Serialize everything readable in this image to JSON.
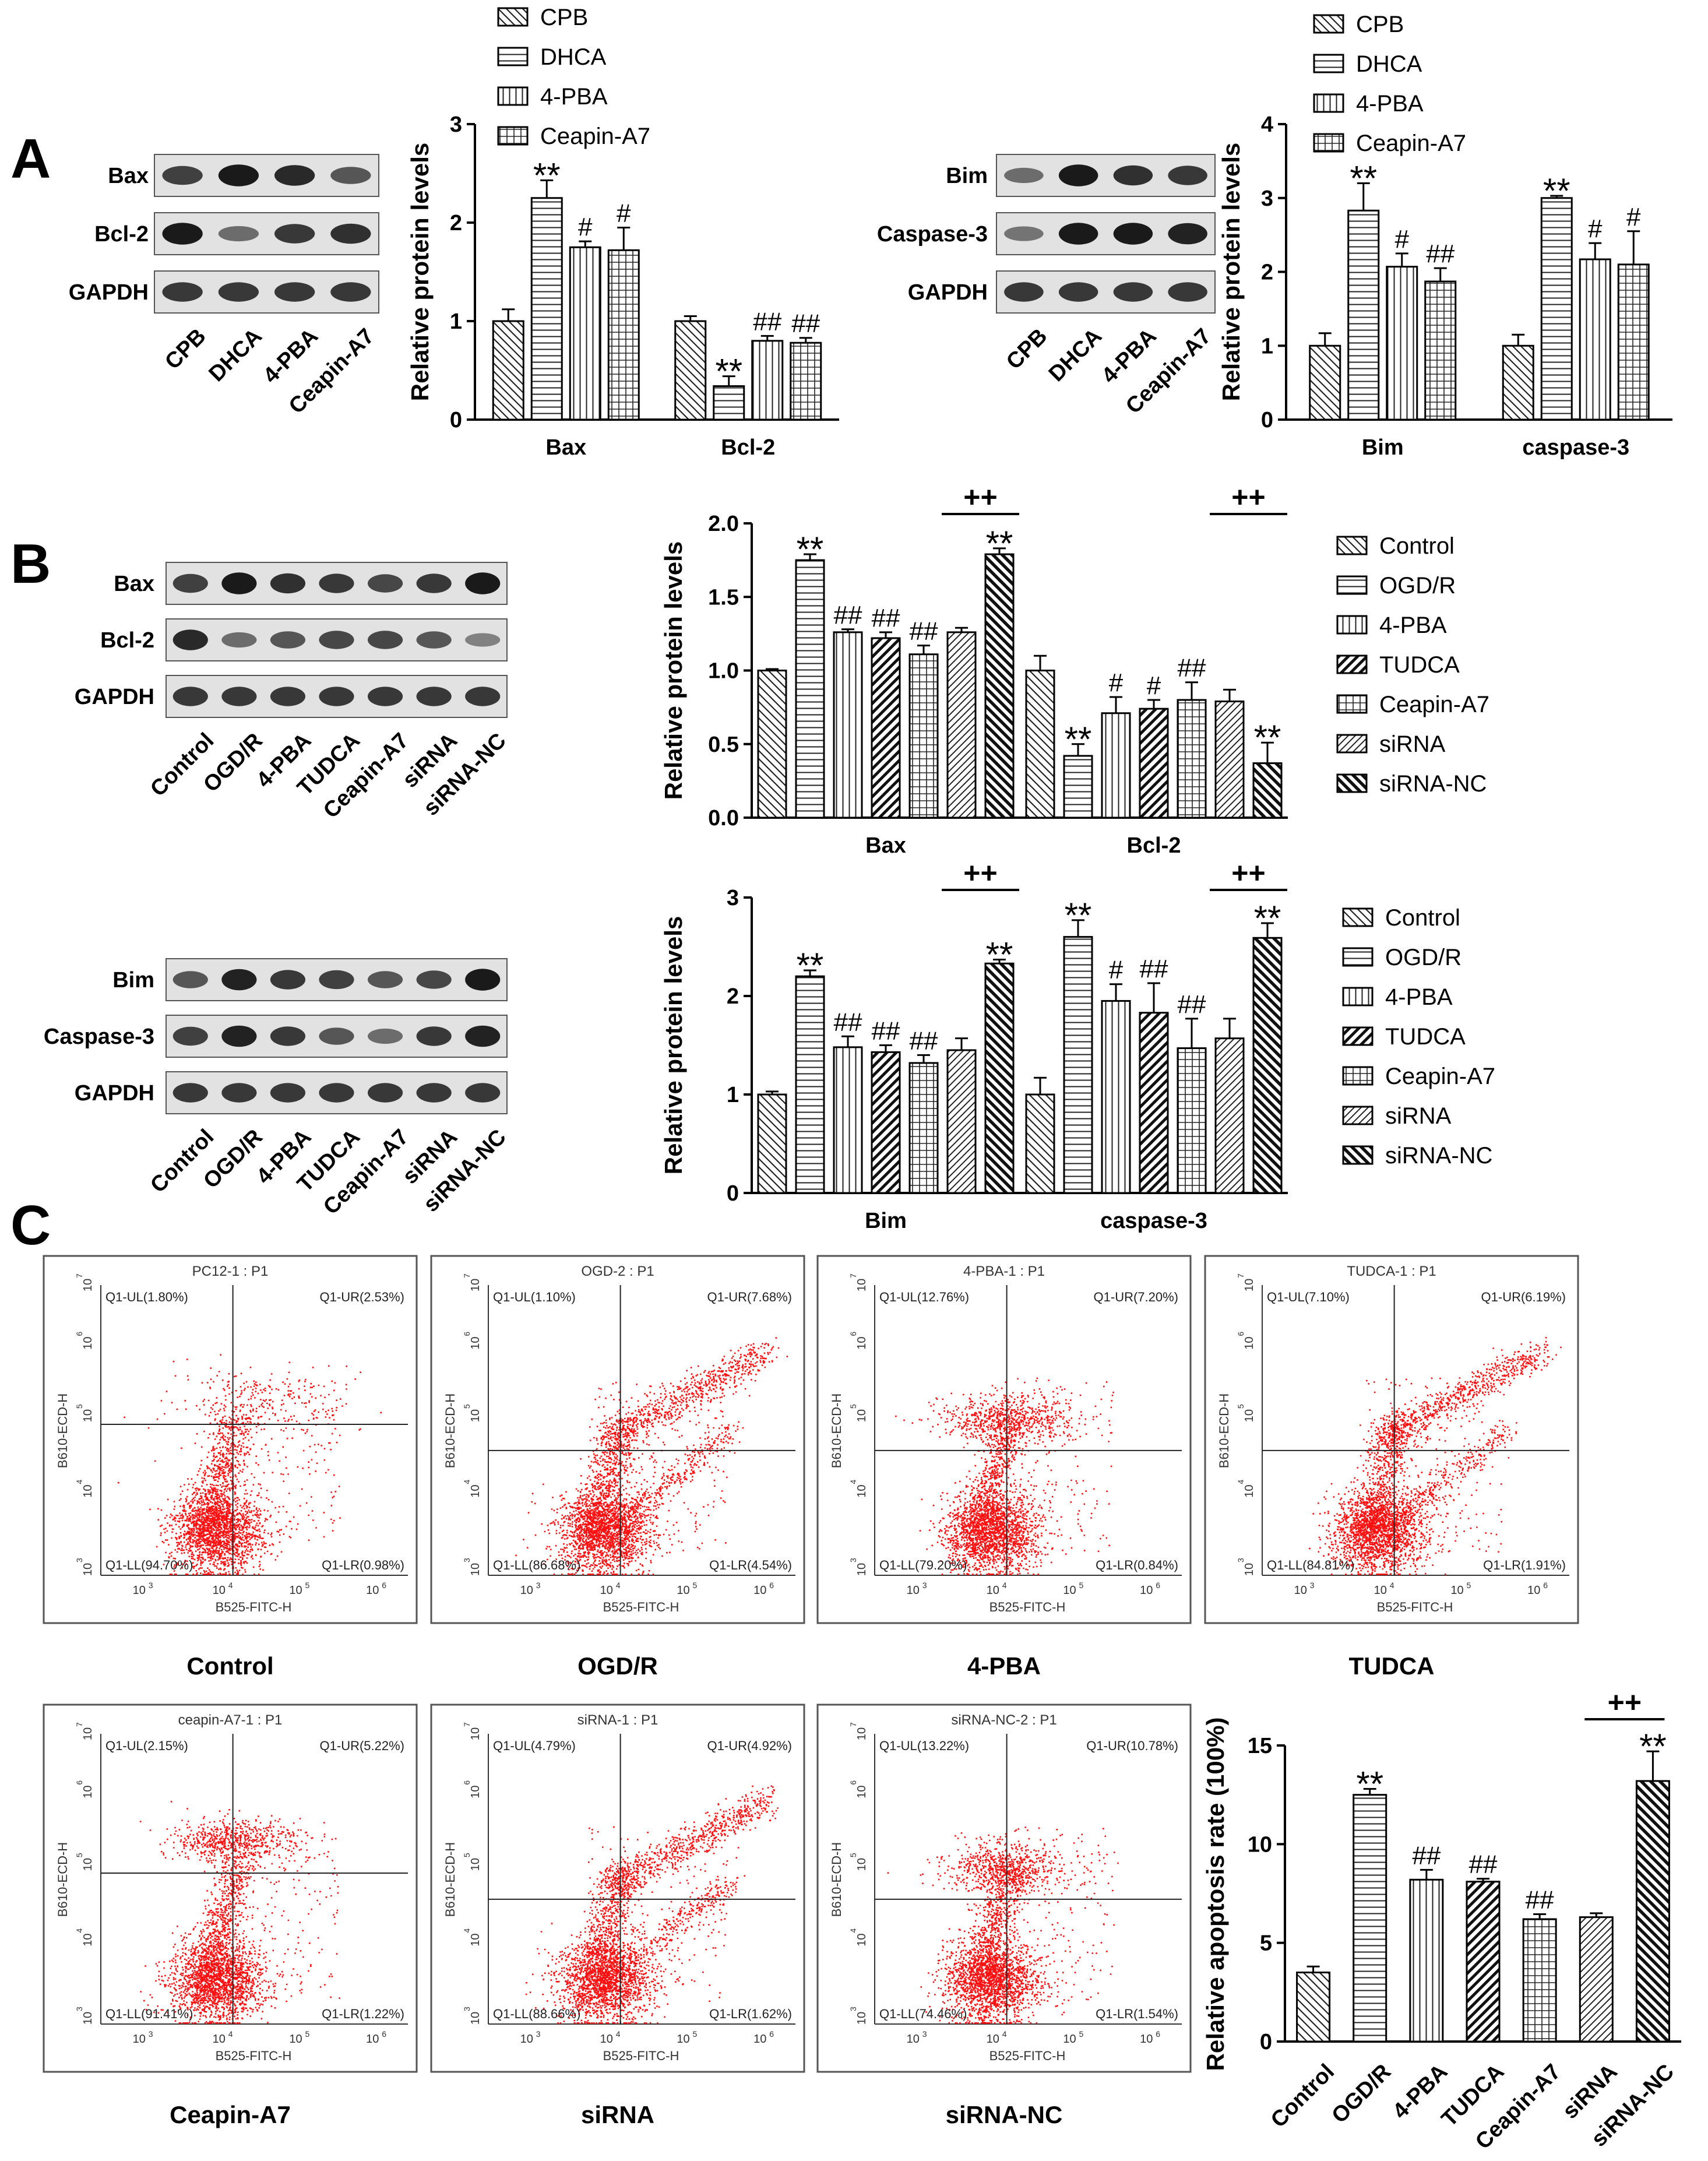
{
  "figure": {
    "panel_labels": [
      "A",
      "B",
      "C"
    ],
    "blots": [
      {
        "id": "blot-A1",
        "rows": [
          "Bax",
          "Bcl-2",
          "GAPDH"
        ],
        "lanes": [
          "CPB",
          "DHCA",
          "4-PBA",
          "Ceapin-A7"
        ]
      },
      {
        "id": "blot-A2",
        "rows": [
          "Bim",
          "Caspase-3",
          "GAPDH"
        ],
        "lanes": [
          "CPB",
          "DHCA",
          "4-PBA",
          "Ceapin-A7"
        ]
      },
      {
        "id": "blot-B1",
        "rows": [
          "Bax",
          "Bcl-2",
          "GAPDH"
        ],
        "lanes": [
          "Control",
          "OGD/R",
          "4-PBA",
          "TUDCA",
          "Ceapin-A7",
          "siRNA",
          "siRNA-NC"
        ]
      },
      {
        "id": "blot-B2",
        "rows": [
          "Bim",
          "Caspase-3",
          "GAPDH"
        ],
        "lanes": [
          "Control",
          "OGD/R",
          "4-PBA",
          "TUDCA",
          "Ceapin-A7",
          "siRNA",
          "siRNA-NC"
        ]
      }
    ],
    "flow_plots": [
      {
        "title": "PC12-1 : P1",
        "caption": "Control",
        "q": [
          "Q1-UL(1.80%)",
          "Q1-UR(2.53%)",
          "Q1-LL(94.70%)",
          "Q1-LR(0.98%)"
        ],
        "xlabel": "B525-FITC-H",
        "ylabel": "B610-ECD-H"
      },
      {
        "title": "OGD-2 : P1",
        "caption": "OGD/R",
        "q": [
          "Q1-UL(1.10%)",
          "Q1-UR(7.68%)",
          "Q1-LL(86.68%)",
          "Q1-LR(4.54%)"
        ],
        "xlabel": "B525-FITC-H",
        "ylabel": "B610-ECD-H"
      },
      {
        "title": "4-PBA-1 : P1",
        "caption": "4-PBA",
        "q": [
          "Q1-UL(12.76%)",
          "Q1-UR(7.20%)",
          "Q1-LL(79.20%)",
          "Q1-LR(0.84%)"
        ],
        "xlabel": "B525-FITC-H",
        "ylabel": "B610-ECD-H"
      },
      {
        "title": "TUDCA-1 : P1",
        "caption": "TUDCA",
        "q": [
          "Q1-UL(7.10%)",
          "Q1-UR(6.19%)",
          "Q1-LL(84.81%)",
          "Q1-LR(1.91%)"
        ],
        "xlabel": "B525-FITC-H",
        "ylabel": "B610-ECD-H"
      },
      {
        "title": "ceapin-A7-1 : P1",
        "caption": "Ceapin-A7",
        "q": [
          "Q1-UL(2.15%)",
          "Q1-UR(5.22%)",
          "Q1-LL(91.41%)",
          "Q1-LR(1.22%)"
        ],
        "xlabel": "B525-FITC-H",
        "ylabel": "B610-ECD-H"
      },
      {
        "title": "siRNA-1 : P1",
        "caption": "siRNA",
        "q": [
          "Q1-UL(4.79%)",
          "Q1-UR(4.92%)",
          "Q1-LL(88.66%)",
          "Q1-LR(1.62%)"
        ],
        "xlabel": "B525-FITC-H",
        "ylabel": "B610-ECD-H"
      },
      {
        "title": "siRNA-NC-2 : P1",
        "caption": "siRNA-NC",
        "q": [
          "Q1-UL(13.22%)",
          "Q1-UR(10.78%)",
          "Q1-LL(74.46%)",
          "Q1-LR(1.54%)"
        ],
        "xlabel": "B525-FITC-H",
        "ylabel": "B610-ECD-H"
      }
    ],
    "flow_tick_labels": [
      "10",
      "3",
      "4",
      "5",
      "6",
      "7"
    ]
  },
  "chart_data": [
    {
      "type": "bar",
      "id": "A-left",
      "categories": [
        "Bax",
        "Bcl-2"
      ],
      "series": [
        {
          "name": "CPB",
          "values": [
            1.0,
            1.0
          ],
          "errors": [
            0.12,
            0.05
          ],
          "marks": [
            "",
            ""
          ]
        },
        {
          "name": "DHCA",
          "values": [
            2.25,
            0.34
          ],
          "errors": [
            0.18,
            0.1
          ],
          "marks": [
            "**",
            "**"
          ]
        },
        {
          "name": "4-PBA",
          "values": [
            1.75,
            0.8
          ],
          "errors": [
            0.06,
            0.05
          ],
          "marks": [
            "#",
            "##"
          ]
        },
        {
          "name": "Ceapin-A7",
          "values": [
            1.72,
            0.78
          ],
          "errors": [
            0.23,
            0.05
          ],
          "marks": [
            "#",
            "##"
          ]
        }
      ],
      "ylabel": "Relative protein levels",
      "ylim": [
        0,
        3
      ],
      "yticks": [
        0,
        1,
        2,
        3
      ]
    },
    {
      "type": "bar",
      "id": "A-right",
      "categories": [
        "Bim",
        "caspase-3"
      ],
      "series": [
        {
          "name": "CPB",
          "values": [
            1.0,
            1.0
          ],
          "errors": [
            0.17,
            0.15
          ],
          "marks": [
            "",
            ""
          ]
        },
        {
          "name": "DHCA",
          "values": [
            2.83,
            3.0
          ],
          "errors": [
            0.37,
            0.03
          ],
          "marks": [
            "**",
            "**"
          ]
        },
        {
          "name": "4-PBA",
          "values": [
            2.07,
            2.17
          ],
          "errors": [
            0.18,
            0.22
          ],
          "marks": [
            "#",
            "#"
          ]
        },
        {
          "name": "Ceapin-A7",
          "values": [
            1.87,
            2.1
          ],
          "errors": [
            0.18,
            0.45
          ],
          "marks": [
            "##",
            "#"
          ]
        }
      ],
      "ylabel": "Relative protein levels",
      "ylim": [
        0,
        4
      ],
      "yticks": [
        0,
        1,
        2,
        3,
        4
      ]
    },
    {
      "type": "bar",
      "id": "B-top",
      "categories": [
        "Bax",
        "Bcl-2"
      ],
      "series": [
        {
          "name": "Control",
          "values": [
            1.0,
            1.0
          ],
          "errors": [
            0.01,
            0.1
          ],
          "marks": [
            "",
            ""
          ]
        },
        {
          "name": "OGD/R",
          "values": [
            1.75,
            0.42
          ],
          "errors": [
            0.04,
            0.08
          ],
          "marks": [
            "**",
            "**"
          ]
        },
        {
          "name": "4-PBA",
          "values": [
            1.26,
            0.71
          ],
          "errors": [
            0.02,
            0.11
          ],
          "marks": [
            "##",
            "#"
          ]
        },
        {
          "name": "TUDCA",
          "values": [
            1.22,
            0.74
          ],
          "errors": [
            0.04,
            0.06
          ],
          "marks": [
            "##",
            "#"
          ]
        },
        {
          "name": "Ceapin-A7",
          "values": [
            1.11,
            0.8
          ],
          "errors": [
            0.06,
            0.12
          ],
          "marks": [
            "##",
            "##"
          ]
        },
        {
          "name": "siRNA",
          "values": [
            1.26,
            0.79
          ],
          "errors": [
            0.03,
            0.08
          ],
          "marks": [
            "",
            ""
          ]
        },
        {
          "name": "siRNA-NC",
          "values": [
            1.79,
            0.37
          ],
          "errors": [
            0.04,
            0.14
          ],
          "marks": [
            "**",
            "**"
          ]
        }
      ],
      "brackets": [
        "++",
        "++"
      ],
      "ylabel": "Relative protein levels",
      "ylim": [
        0,
        2
      ],
      "yticks": [
        "0.0",
        "0.5",
        "1.0",
        "1.5",
        "2.0"
      ]
    },
    {
      "type": "bar",
      "id": "B-bottom",
      "categories": [
        "Bim",
        "caspase-3"
      ],
      "series": [
        {
          "name": "Control",
          "values": [
            1.0,
            1.0
          ],
          "errors": [
            0.03,
            0.17
          ],
          "marks": [
            "",
            ""
          ]
        },
        {
          "name": "OGD/R",
          "values": [
            2.2,
            2.6
          ],
          "errors": [
            0.06,
            0.17
          ],
          "marks": [
            "**",
            "**"
          ]
        },
        {
          "name": "4-PBA",
          "values": [
            1.48,
            1.95
          ],
          "errors": [
            0.11,
            0.17
          ],
          "marks": [
            "##",
            "#"
          ]
        },
        {
          "name": "TUDCA",
          "values": [
            1.43,
            1.83
          ],
          "errors": [
            0.07,
            0.3
          ],
          "marks": [
            "##",
            "##"
          ]
        },
        {
          "name": "Ceapin-A7",
          "values": [
            1.32,
            1.47
          ],
          "errors": [
            0.08,
            0.3
          ],
          "marks": [
            "##",
            "##"
          ]
        },
        {
          "name": "siRNA",
          "values": [
            1.45,
            1.57
          ],
          "errors": [
            0.12,
            0.2
          ],
          "marks": [
            "",
            ""
          ]
        },
        {
          "name": "siRNA-NC",
          "values": [
            2.33,
            2.59
          ],
          "errors": [
            0.04,
            0.15
          ],
          "marks": [
            "**",
            "**"
          ]
        }
      ],
      "brackets": [
        "++",
        "++"
      ],
      "ylabel": "Relative protein levels",
      "ylim": [
        0,
        3
      ],
      "yticks": [
        0,
        1,
        2,
        3
      ]
    },
    {
      "type": "bar",
      "id": "C-bar",
      "categories": [
        "Control",
        "OGD/R",
        "4-PBA",
        "TUDCA",
        "Ceapin-A7",
        "siRNA",
        "siRNA-NC"
      ],
      "values": [
        3.5,
        12.5,
        8.2,
        8.1,
        6.2,
        6.3,
        13.2
      ],
      "errors": [
        0.3,
        0.3,
        0.5,
        0.15,
        0.25,
        0.2,
        1.5
      ],
      "marks": [
        "",
        "**",
        "##",
        "##",
        "##",
        "",
        "**"
      ],
      "bracket": "++",
      "ylabel": "Relative apoptosis rate  (100%)",
      "ylim": [
        0,
        15
      ],
      "yticks": [
        0,
        5,
        10,
        15
      ]
    }
  ]
}
